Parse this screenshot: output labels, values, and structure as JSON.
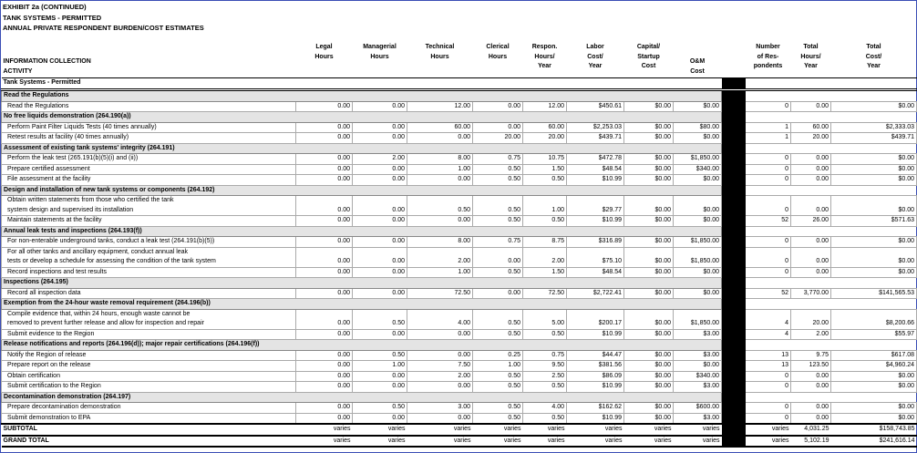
{
  "header": {
    "lines": [
      "EXHIBIT 2a (CONTINUED)",
      "TANK SYSTEMS - PERMITTED",
      "ANNUAL PRIVATE RESPONDENT BURDEN/COST ESTIMATES"
    ]
  },
  "columns": [
    {
      "lines": [
        "INFORMATION COLLECTION",
        "ACTIVITY"
      ]
    },
    {
      "lines": [
        "Legal",
        "Hours"
      ]
    },
    {
      "lines": [
        "Managerial",
        "Hours"
      ]
    },
    {
      "lines": [
        "Technical",
        "Hours"
      ]
    },
    {
      "lines": [
        "Clerical",
        "Hours"
      ]
    },
    {
      "lines": [
        "Respon.",
        "Hours/",
        "Year"
      ]
    },
    {
      "lines": [
        "Labor",
        "Cost/",
        "Year"
      ]
    },
    {
      "lines": [
        "Capital/",
        "Startup",
        "Cost"
      ]
    },
    {
      "lines": [
        "O&M",
        "Cost"
      ]
    },
    {
      "lines": [
        "Number",
        "of Res-",
        "pondents"
      ]
    },
    {
      "lines": [
        "Total",
        "Hours/",
        "Year"
      ]
    },
    {
      "lines": [
        "Total",
        "Cost/",
        "Year"
      ]
    }
  ],
  "table_title": "Tank Systems - Permitted",
  "sections": [
    {
      "title": "Read the Regulations",
      "rows": [
        {
          "activity": [
            "Read the Regulations"
          ],
          "values": [
            "0.00",
            "0.00",
            "12.00",
            "0.00",
            "12.00",
            "$450.61",
            "$0.00",
            "$0.00",
            "0",
            "0.00",
            "$0.00"
          ]
        }
      ]
    },
    {
      "title": "No free liquids demonstration (264.190(a))",
      "rows": [
        {
          "activity": [
            "Perform Paint Filter Liquids Tests (40 times annually)"
          ],
          "values": [
            "0.00",
            "0.00",
            "60.00",
            "0.00",
            "60.00",
            "$2,253.03",
            "$0.00",
            "$80.00",
            "1",
            "60.00",
            "$2,333.03"
          ]
        },
        {
          "activity": [
            "Retest results at facility (40 times annually)"
          ],
          "values": [
            "0.00",
            "0.00",
            "0.00",
            "20.00",
            "20.00",
            "$439.71",
            "$0.00",
            "$0.00",
            "1",
            "20.00",
            "$439.71"
          ]
        }
      ]
    },
    {
      "title": "Assessment of existing tank systems' integrity (264.191)",
      "rows": [
        {
          "activity": [
            "Perform the leak test (265.191(b)(5)(i) and (ii))"
          ],
          "values": [
            "0.00",
            "2.00",
            "8.00",
            "0.75",
            "10.75",
            "$472.78",
            "$0.00",
            "$1,850.00",
            "0",
            "0.00",
            "$0.00"
          ]
        },
        {
          "activity": [
            "Prepare certified assessment"
          ],
          "values": [
            "0.00",
            "0.00",
            "1.00",
            "0.50",
            "1.50",
            "$48.54",
            "$0.00",
            "$340.00",
            "0",
            "0.00",
            "$0.00"
          ]
        },
        {
          "activity": [
            "File assessment at the facility"
          ],
          "values": [
            "0.00",
            "0.00",
            "0.00",
            "0.50",
            "0.50",
            "$10.99",
            "$0.00",
            "$0.00",
            "0",
            "0.00",
            "$0.00"
          ]
        }
      ]
    },
    {
      "title": "Design and installation of new tank systems or components (264.192)",
      "rows": [
        {
          "activity": [
            "Obtain written statements from those who certified the tank",
            "system design and supervised its installation"
          ],
          "values": [
            "0.00",
            "0.00",
            "0.50",
            "0.50",
            "1.00",
            "$29.77",
            "$0.00",
            "$0.00",
            "0",
            "0.00",
            "$0.00"
          ]
        },
        {
          "activity": [
            "Maintain statements at the facility"
          ],
          "values": [
            "0.00",
            "0.00",
            "0.00",
            "0.50",
            "0.50",
            "$10.99",
            "$0.00",
            "$0.00",
            "52",
            "26.00",
            "$571.63"
          ]
        }
      ]
    },
    {
      "title": "Annual leak tests and inspections (264.193(f))",
      "rows": [
        {
          "activity": [
            "For non-enterable underground tanks, conduct a leak test (264.191(b)(5))"
          ],
          "values": [
            "0.00",
            "0.00",
            "8.00",
            "0.75",
            "8.75",
            "$316.89",
            "$0.00",
            "$1,850.00",
            "0",
            "0.00",
            "$0.00"
          ]
        },
        {
          "activity": [
            "For all other tanks and ancillary equipment, conduct annual leak",
            "tests or develop a schedule for assessing the condition of the tank system"
          ],
          "values": [
            "0.00",
            "0.00",
            "2.00",
            "0.00",
            "2.00",
            "$75.10",
            "$0.00",
            "$1,850.00",
            "0",
            "0.00",
            "$0.00"
          ]
        },
        {
          "activity": [
            "Record inspections and test results"
          ],
          "values": [
            "0.00",
            "0.00",
            "1.00",
            "0.50",
            "1.50",
            "$48.54",
            "$0.00",
            "$0.00",
            "0",
            "0.00",
            "$0.00"
          ]
        }
      ]
    },
    {
      "title": "Inspections (264.195)",
      "rows": [
        {
          "activity": [
            "Record all inspection data"
          ],
          "values": [
            "0.00",
            "0.00",
            "72.50",
            "0.00",
            "72.50",
            "$2,722.41",
            "$0.00",
            "$0.00",
            "52",
            "3,770.00",
            "$141,565.53"
          ]
        }
      ]
    },
    {
      "title": "Exemption from the 24-hour waste removal requirement (264.196(b))",
      "rows": [
        {
          "activity": [
            "Compile evidence that, within 24 hours, enough waste cannot be",
            "removed to prevent further release and allow for inspection and repair"
          ],
          "values": [
            "0.00",
            "0.50",
            "4.00",
            "0.50",
            "5.00",
            "$200.17",
            "$0.00",
            "$1,850.00",
            "4",
            "20.00",
            "$8,200.66"
          ]
        },
        {
          "activity": [
            "Submit evidence to the Region"
          ],
          "values": [
            "0.00",
            "0.00",
            "0.00",
            "0.50",
            "0.50",
            "$10.99",
            "$0.00",
            "$3.00",
            "4",
            "2.00",
            "$55.97"
          ]
        }
      ]
    },
    {
      "title": "Release notifications and reports (264.196(d)); major repair certifications (264.196(f))",
      "rows": [
        {
          "activity": [
            "Notify the Region of release"
          ],
          "values": [
            "0.00",
            "0.50",
            "0.00",
            "0.25",
            "0.75",
            "$44.47",
            "$0.00",
            "$3.00",
            "13",
            "9.75",
            "$617.08"
          ]
        },
        {
          "activity": [
            "Prepare report on the release"
          ],
          "values": [
            "0.00",
            "1.00",
            "7.50",
            "1.00",
            "9.50",
            "$381.56",
            "$0.00",
            "$0.00",
            "13",
            "123.50",
            "$4,960.24"
          ]
        },
        {
          "activity": [
            "Obtain certification"
          ],
          "values": [
            "0.00",
            "0.00",
            "2.00",
            "0.50",
            "2.50",
            "$86.09",
            "$0.00",
            "$340.00",
            "0",
            "0.00",
            "$0.00"
          ]
        },
        {
          "activity": [
            "Submit certification to the Region"
          ],
          "values": [
            "0.00",
            "0.00",
            "0.00",
            "0.50",
            "0.50",
            "$10.99",
            "$0.00",
            "$3.00",
            "0",
            "0.00",
            "$0.00"
          ]
        }
      ]
    },
    {
      "title": "Decontamination demonstration (264.197)",
      "rows": [
        {
          "activity": [
            "Prepare decontamination demonstration"
          ],
          "values": [
            "0.00",
            "0.50",
            "3.00",
            "0.50",
            "4.00",
            "$162.62",
            "$0.00",
            "$600.00",
            "0",
            "0.00",
            "$0.00"
          ]
        },
        {
          "activity": [
            "Submit demonstration to EPA"
          ],
          "values": [
            "0.00",
            "0.00",
            "0.00",
            "0.50",
            "0.50",
            "$10.99",
            "$0.00",
            "$3.00",
            "0",
            "0.00",
            "$0.00"
          ]
        }
      ]
    }
  ],
  "totals": [
    {
      "label": "SUBTOTAL",
      "values": [
        "varies",
        "varies",
        "varies",
        "varies",
        "varies",
        "varies",
        "varies",
        "varies",
        "varies",
        "4,031.25",
        "$158,743.85"
      ]
    },
    {
      "label": "GRAND TOTAL",
      "values": [
        "varies",
        "varies",
        "varies",
        "varies",
        "varies",
        "varies",
        "varies",
        "varies",
        "varies",
        "5,102.19",
        "$241,616.14"
      ]
    }
  ]
}
